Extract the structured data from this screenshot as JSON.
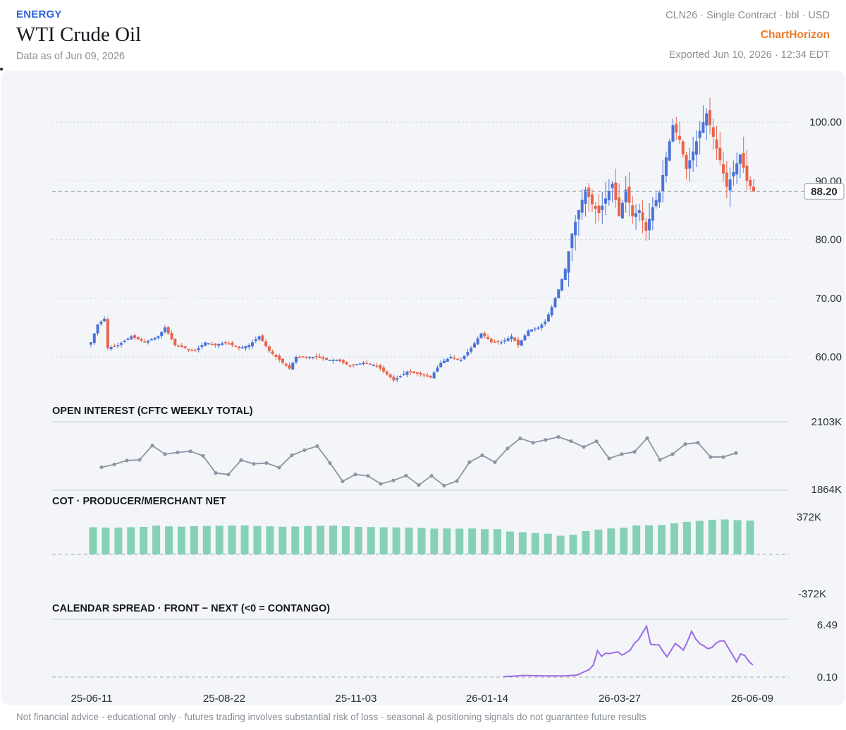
{
  "header": {
    "category": "ENERGY",
    "title": "WTI Crude Oil",
    "as_of": "Data as of Jun 09, 2026",
    "contract": "CLN26 · Single Contract · bbl · USD",
    "brand": "ChartHorizon",
    "exported": "Exported Jun 10, 2026 · 12:34 EDT"
  },
  "footer": {
    "disclaimer": "Not financial advice · educational only · futures trading involves substantial risk of loss · seasonal & positioning signals do not guarantee future results"
  },
  "colors": {
    "up": "#4a72d9",
    "down": "#e8654a",
    "oi_line": "#8b95a3",
    "cot_bar": "#86d1b6",
    "spread_line": "#9b6be3",
    "panel_bg": "#f3f5f9",
    "grid": "#c9cfd8"
  },
  "chart_data": [
    {
      "type": "candlestick",
      "panel": "price",
      "y_ticks": [
        "60.00",
        "70.00",
        "80.00",
        "90.00",
        "100.00"
      ],
      "ylim": [
        53,
        106
      ],
      "last_price_label": "88.20",
      "x_ticks": [
        "25-06-11",
        "25-08-22",
        "25-11-03",
        "26-01-14",
        "26-03-27",
        "26-06-09"
      ],
      "anchors": [
        [
          0,
          62.5
        ],
        [
          2,
          65.5
        ],
        [
          4,
          66.5
        ],
        [
          5,
          61.5
        ],
        [
          8,
          62.0
        ],
        [
          12,
          63.5
        ],
        [
          16,
          62.5
        ],
        [
          20,
          63.5
        ],
        [
          22,
          65.0
        ],
        [
          25,
          62.0
        ],
        [
          28,
          61.5
        ],
        [
          31,
          61.0
        ],
        [
          34,
          62.5
        ],
        [
          37,
          62.0
        ],
        [
          40,
          62.5
        ],
        [
          44,
          61.5
        ],
        [
          47,
          62.0
        ],
        [
          50,
          63.5
        ],
        [
          53,
          61.0
        ],
        [
          56,
          59.5
        ],
        [
          59,
          58.0
        ],
        [
          61,
          60.0
        ],
        [
          64,
          60.0
        ],
        [
          67,
          60.0
        ],
        [
          70,
          59.5
        ],
        [
          73,
          59.5
        ],
        [
          77,
          58.5
        ],
        [
          81,
          59.0
        ],
        [
          85,
          58.5
        ],
        [
          88,
          57.0
        ],
        [
          90,
          56.0
        ],
        [
          94,
          57.5
        ],
        [
          98,
          57.0
        ],
        [
          101,
          56.5
        ],
        [
          104,
          59.0
        ],
        [
          107,
          60.0
        ],
        [
          110,
          59.5
        ],
        [
          113,
          61.5
        ],
        [
          116,
          64.0
        ],
        [
          119,
          62.5
        ],
        [
          122,
          62.5
        ],
        [
          125,
          63.5
        ],
        [
          127,
          62.0
        ],
        [
          130,
          64.5
        ],
        [
          133,
          65.0
        ],
        [
          135,
          66.0
        ],
        [
          137,
          68.5
        ],
        [
          139,
          71.5
        ],
        [
          141,
          75.0
        ],
        [
          143,
          81.0
        ],
        [
          145,
          85.0
        ],
        [
          147,
          88.5
        ],
        [
          149,
          86.0
        ],
        [
          151,
          84.5
        ],
        [
          153,
          87.0
        ],
        [
          155,
          89.5
        ],
        [
          157,
          84.0
        ],
        [
          159,
          88.5
        ],
        [
          161,
          84.0
        ],
        [
          163,
          85.0
        ],
        [
          165,
          81.5
        ],
        [
          167,
          85.5
        ],
        [
          169,
          88.0
        ],
        [
          171,
          94.0
        ],
        [
          173,
          99.5
        ],
        [
          175,
          97.0
        ],
        [
          177,
          92.0
        ],
        [
          179,
          95.0
        ],
        [
          181,
          98.5
        ],
        [
          183,
          101.5
        ],
        [
          185,
          97.5
        ],
        [
          187,
          93.5
        ],
        [
          189,
          89.0
        ],
        [
          191,
          91.5
        ],
        [
          193,
          94.5
        ],
        [
          195,
          90.0
        ],
        [
          197,
          88.2
        ]
      ],
      "total_candles": 198
    },
    {
      "type": "line",
      "panel": "open_interest",
      "title": "OPEN INTEREST (CFTC WEEKLY TOTAL)",
      "y_ticks": [
        "2103K",
        "1864K"
      ],
      "ylim": [
        1864,
        2103
      ],
      "values": [
        1944,
        1954,
        1968,
        1970,
        2020,
        1990,
        1996,
        2000,
        1984,
        1924,
        1919,
        1969,
        1956,
        1959,
        1943,
        1986,
        2004,
        2018,
        1959,
        1895,
        1919,
        1914,
        1886,
        1898,
        1915,
        1882,
        1914,
        1880,
        1896,
        1962,
        1986,
        1962,
        2010,
        2045,
        2030,
        2040,
        2050,
        2035,
        2015,
        2035,
        1975,
        1990,
        1998,
        2046,
        1970,
        1990,
        2025,
        2030,
        1980,
        1980,
        1994
      ]
    },
    {
      "type": "bar",
      "panel": "cot_producer_merchant_net",
      "title": "COT · PRODUCER/MERCHANT NET",
      "y_ticks": [
        "372K",
        "-372K"
      ],
      "ylim": [
        -372,
        372
      ],
      "values": [
        193,
        191,
        191,
        194,
        196,
        205,
        200,
        198,
        202,
        203,
        204,
        205,
        206,
        203,
        200,
        197,
        199,
        202,
        204,
        205,
        201,
        196,
        195,
        193,
        192,
        191,
        188,
        184,
        185,
        183,
        185,
        180,
        180,
        163,
        158,
        152,
        147,
        133,
        140,
        166,
        177,
        185,
        190,
        206,
        208,
        209,
        221,
        232,
        239,
        247,
        249,
        244,
        241
      ]
    },
    {
      "type": "line",
      "panel": "calendar_spread",
      "title": "CALENDAR SPREAD · FRONT − NEXT (<0 = CONTANGO)",
      "y_ticks": [
        "6.49",
        "0.10"
      ],
      "ylim": [
        0.1,
        6.49
      ],
      "anchors": [
        [
          0,
          0.15
        ],
        [
          5,
          0.3
        ],
        [
          10,
          0.25
        ],
        [
          15,
          0.25
        ],
        [
          18,
          0.35
        ],
        [
          20,
          0.8
        ],
        [
          22,
          1.6
        ],
        [
          23,
          3.4
        ],
        [
          24,
          2.8
        ],
        [
          26,
          3.0
        ],
        [
          28,
          3.2
        ],
        [
          29,
          2.8
        ],
        [
          31,
          3.5
        ],
        [
          33,
          4.8
        ],
        [
          35,
          6.3
        ],
        [
          36,
          4.0
        ],
        [
          38,
          4.2
        ],
        [
          40,
          2.5
        ],
        [
          42,
          4.2
        ],
        [
          44,
          3.5
        ],
        [
          46,
          5.6
        ],
        [
          48,
          4.3
        ],
        [
          50,
          3.5
        ],
        [
          52,
          4.3
        ],
        [
          54,
          4.5
        ],
        [
          55,
          3.8
        ],
        [
          57,
          1.8
        ],
        [
          58,
          3.0
        ],
        [
          60,
          2.2
        ],
        [
          61,
          1.5
        ]
      ],
      "total_points": 62
    }
  ]
}
